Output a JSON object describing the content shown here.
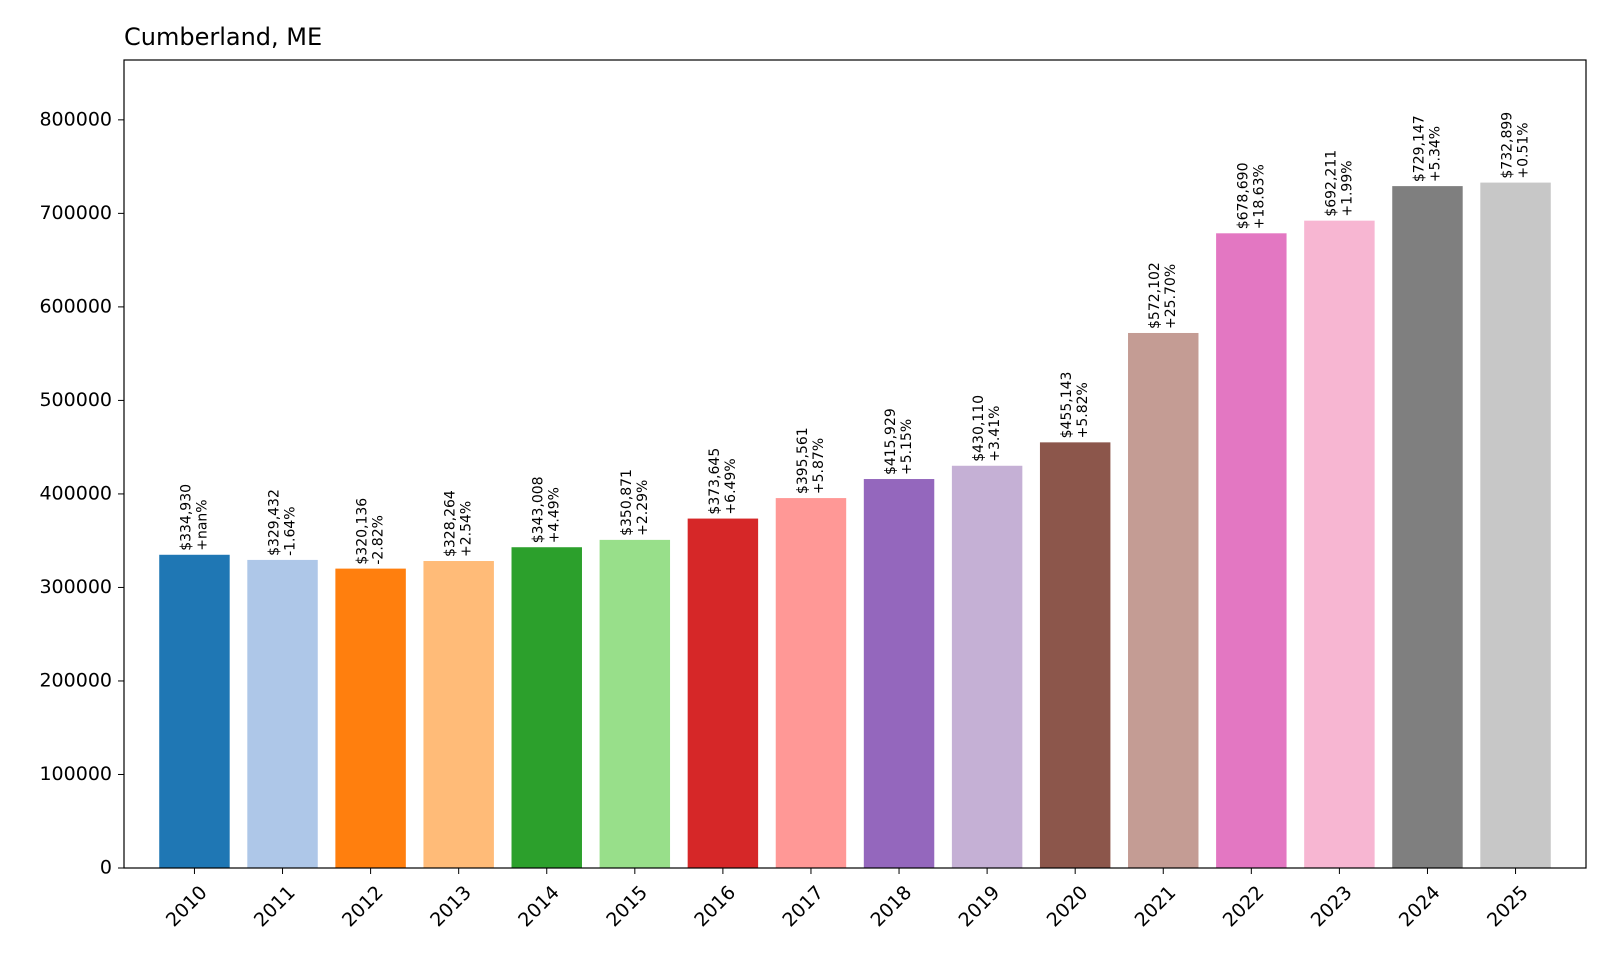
{
  "chart_data": {
    "type": "bar",
    "title": "Cumberland, ME",
    "xlabel": "",
    "ylabel": "",
    "categories": [
      "2010",
      "2011",
      "2012",
      "2013",
      "2014",
      "2015",
      "2016",
      "2017",
      "2018",
      "2019",
      "2020",
      "2021",
      "2022",
      "2023",
      "2024",
      "2025"
    ],
    "values": [
      334930,
      329432,
      320136,
      328264,
      343008,
      350871,
      373645,
      395561,
      415929,
      430110,
      455143,
      572102,
      678690,
      692211,
      729147,
      732899
    ],
    "value_labels": [
      "$334,930",
      "$329,432",
      "$320,136",
      "$328,264",
      "$343,008",
      "$350,871",
      "$373,645",
      "$395,561",
      "$415,929",
      "$430,110",
      "$455,143",
      "$572,102",
      "$678,690",
      "$692,211",
      "$729,147",
      "$732,899"
    ],
    "change_labels": [
      "+nan%",
      "-1.64%",
      "-2.82%",
      "+2.54%",
      "+4.49%",
      "+2.29%",
      "+6.49%",
      "+5.87%",
      "+5.15%",
      "+3.41%",
      "+5.82%",
      "+25.70%",
      "+18.63%",
      "+1.99%",
      "+5.34%",
      "+0.51%"
    ],
    "colors": [
      "#1f77b4",
      "#aec7e8",
      "#ff7f0e",
      "#ffbb78",
      "#2ca02c",
      "#98df8a",
      "#d62728",
      "#ff9896",
      "#9467bd",
      "#c5b0d5",
      "#8c564b",
      "#c49c94",
      "#e377c2",
      "#f7b6d2",
      "#7f7f7f",
      "#c7c7c7"
    ],
    "ylim": [
      0,
      864000
    ],
    "yticks": [
      0,
      100000,
      200000,
      300000,
      400000,
      500000,
      600000,
      700000,
      800000
    ],
    "ytick_labels": [
      "0",
      "100000",
      "200000",
      "300000",
      "400000",
      "500000",
      "600000",
      "700000",
      "800000"
    ],
    "grid": false,
    "legend": "none"
  }
}
